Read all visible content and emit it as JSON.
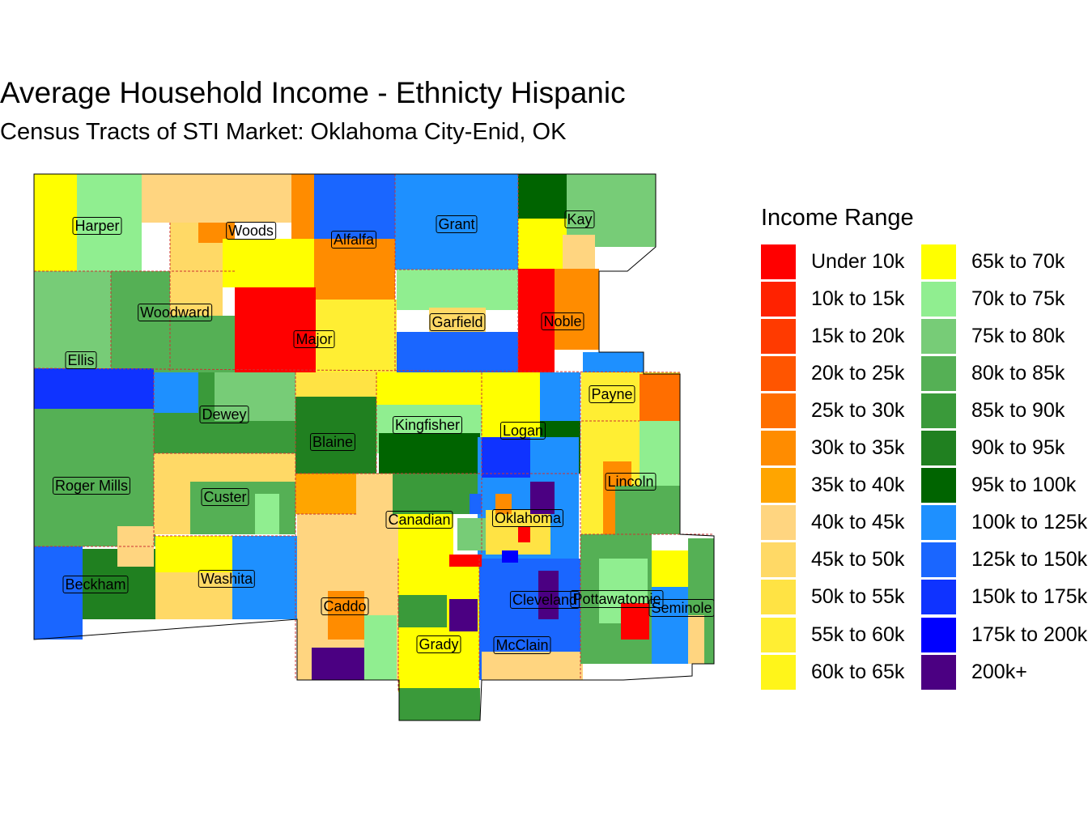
{
  "title": "Average Household Income - Ethnicty Hispanic",
  "subtitle": "Census Tracts of STI Market: Oklahoma City-Enid, OK",
  "legend": {
    "title": "Income Range",
    "items": [
      {
        "label": "Under 10k",
        "color": "#FF0000"
      },
      {
        "label": "10k to 15k",
        "color": "#FF2200"
      },
      {
        "label": "15k to 20k",
        "color": "#FF3A00"
      },
      {
        "label": "20k to 25k",
        "color": "#FF5500"
      },
      {
        "label": "25k to 30k",
        "color": "#FF6E00"
      },
      {
        "label": "30k to 35k",
        "color": "#FF8C00"
      },
      {
        "label": "35k to 40k",
        "color": "#FFA500"
      },
      {
        "label": "40k to 45k",
        "color": "#FFD580"
      },
      {
        "label": "45k to 50k",
        "color": "#FFD966"
      },
      {
        "label": "50k to 55k",
        "color": "#FFE344"
      },
      {
        "label": "55k to 60k",
        "color": "#FFEE33"
      },
      {
        "label": "60k to 65k",
        "color": "#FFF51A"
      },
      {
        "label": "65k to 70k",
        "color": "#FFFF00"
      },
      {
        "label": "70k to 75k",
        "color": "#90EE90"
      },
      {
        "label": "75k to 80k",
        "color": "#77CC77"
      },
      {
        "label": "80k to 85k",
        "color": "#55B055"
      },
      {
        "label": "85k to 90k",
        "color": "#3A9A3A"
      },
      {
        "label": "90k to 95k",
        "color": "#208020"
      },
      {
        "label": "95k to 100k",
        "color": "#006400"
      },
      {
        "label": "100k to 125k",
        "color": "#1E90FF"
      },
      {
        "label": "125k to 150k",
        "color": "#1A66FF"
      },
      {
        "label": "150k to 175k",
        "color": "#0F33FF"
      },
      {
        "label": "175k to 200k",
        "color": "#0000FF"
      },
      {
        "label": "200k+",
        "color": "#4B0082"
      }
    ]
  },
  "counties": [
    {
      "name": "Harper"
    },
    {
      "name": "Woods"
    },
    {
      "name": "Alfalfa"
    },
    {
      "name": "Grant"
    },
    {
      "name": "Kay"
    },
    {
      "name": "Woodward"
    },
    {
      "name": "Major"
    },
    {
      "name": "Garfield"
    },
    {
      "name": "Noble"
    },
    {
      "name": "Ellis"
    },
    {
      "name": "Payne"
    },
    {
      "name": "Dewey"
    },
    {
      "name": "Kingfisher"
    },
    {
      "name": "Blaine"
    },
    {
      "name": "Logan"
    },
    {
      "name": "Roger Mills"
    },
    {
      "name": "Custer"
    },
    {
      "name": "Lincoln"
    },
    {
      "name": "Canadian"
    },
    {
      "name": "Oklahoma"
    },
    {
      "name": "Beckham"
    },
    {
      "name": "Washita"
    },
    {
      "name": "Caddo"
    },
    {
      "name": "Cleveland"
    },
    {
      "name": "Pottawatomie"
    },
    {
      "name": "Seminole"
    },
    {
      "name": "Grady"
    },
    {
      "name": "McClain"
    }
  ]
}
